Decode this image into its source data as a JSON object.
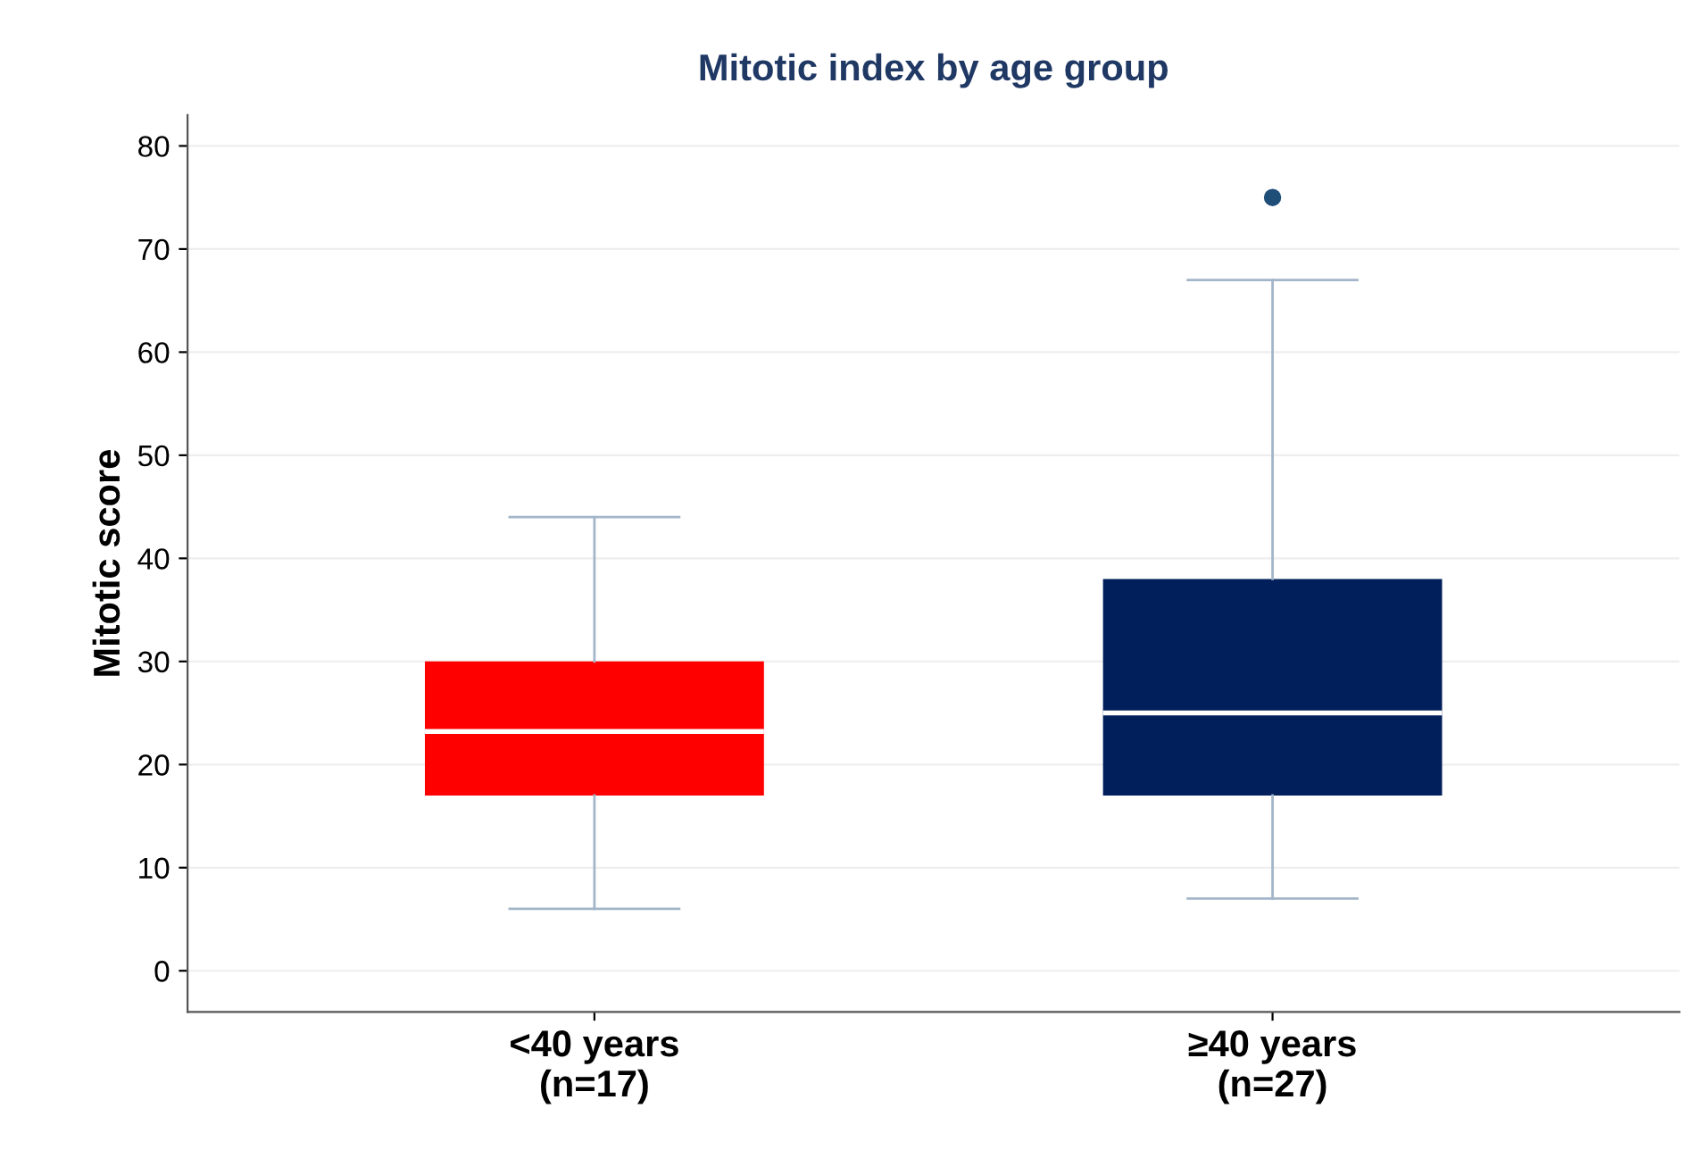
{
  "chart_data": {
    "type": "box",
    "title": "Mitotic index by age group",
    "ylabel": "Mitotic score",
    "categories": [
      "<40 years\n(n=17)",
      "≥40 years\n(n=27)"
    ],
    "colors": [
      "#ff0000",
      "#001f5b"
    ],
    "boxes": [
      {
        "low": 6,
        "q1": 17,
        "median": 23.2,
        "q3": 30,
        "high": 44
      },
      {
        "low": 7,
        "q1": 17,
        "median": 25,
        "q3": 38,
        "high": 67,
        "outliers": [
          75
        ]
      }
    ],
    "ylim": [
      -4,
      83
    ],
    "yticks": [
      0,
      10,
      20,
      30,
      40,
      50,
      60,
      70,
      80
    ],
    "grid": "y"
  }
}
